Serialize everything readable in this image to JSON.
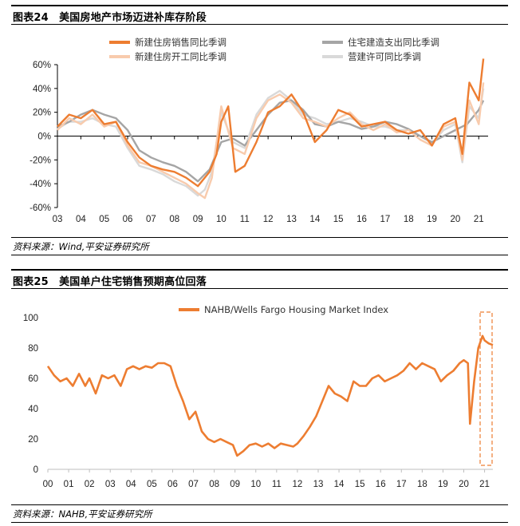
{
  "fig1": {
    "title": "图表24　美国房地产市场迈进补库存阶段",
    "source": "资料来源：Wind,平安证券研究所",
    "chart_data": {
      "type": "line",
      "xlabel": "",
      "ylabel": "",
      "x_ticks": [
        "03",
        "04",
        "05",
        "06",
        "07",
        "08",
        "09",
        "10",
        "11",
        "12",
        "13",
        "14",
        "15",
        "16",
        "17",
        "18",
        "19",
        "20",
        "21"
      ],
      "y_ticks": [
        "60%",
        "40%",
        "20%",
        "0%",
        "-20%",
        "-40%",
        "-60%"
      ],
      "ylim": [
        -60,
        60
      ],
      "grid": false,
      "legend_position": "top",
      "series": [
        {
          "name": "新建住房销售同比季调",
          "color": "#ED7D31",
          "x": [
            2003.0,
            2003.5,
            2004.0,
            2004.5,
            2005.0,
            2005.5,
            2006.0,
            2006.5,
            2007.0,
            2007.5,
            2008.0,
            2008.5,
            2009.0,
            2009.5,
            2009.8,
            2010.0,
            2010.3,
            2010.6,
            2011.0,
            2011.5,
            2012.0,
            2012.5,
            2013.0,
            2013.5,
            2014.0,
            2014.5,
            2015.0,
            2015.5,
            2016.0,
            2016.5,
            2017.0,
            2017.5,
            2018.0,
            2018.5,
            2019.0,
            2019.5,
            2020.0,
            2020.3,
            2020.6,
            2021.0,
            2021.2
          ],
          "values": [
            8,
            18,
            15,
            22,
            10,
            12,
            -5,
            -18,
            -25,
            -28,
            -30,
            -35,
            -42,
            -30,
            -15,
            12,
            25,
            -30,
            -25,
            -5,
            20,
            25,
            35,
            20,
            -5,
            5,
            22,
            18,
            8,
            10,
            12,
            5,
            2,
            5,
            -8,
            10,
            15,
            -15,
            45,
            30,
            65
          ]
        },
        {
          "name": "住宅建造支出同比季调",
          "color": "#A5A5A5",
          "x": [
            2003.0,
            2003.5,
            2004.0,
            2004.5,
            2005.0,
            2005.5,
            2006.0,
            2006.5,
            2007.0,
            2007.5,
            2008.0,
            2008.5,
            2009.0,
            2009.5,
            2010.0,
            2010.5,
            2011.0,
            2011.5,
            2012.0,
            2012.5,
            2013.0,
            2013.5,
            2014.0,
            2014.5,
            2015.0,
            2015.5,
            2016.0,
            2016.5,
            2017.0,
            2017.5,
            2018.0,
            2018.5,
            2019.0,
            2019.5,
            2020.0,
            2020.5,
            2021.0,
            2021.2
          ],
          "values": [
            8,
            12,
            18,
            22,
            18,
            15,
            5,
            -12,
            -18,
            -22,
            -25,
            -30,
            -38,
            -28,
            -5,
            -2,
            -8,
            5,
            18,
            28,
            30,
            22,
            10,
            8,
            12,
            10,
            6,
            8,
            12,
            10,
            6,
            0,
            -5,
            0,
            5,
            10,
            22,
            30
          ]
        },
        {
          "name": "新建住房开工同比季调",
          "color": "#F8CBAD",
          "x": [
            2003.0,
            2003.5,
            2004.0,
            2004.5,
            2005.0,
            2005.5,
            2006.0,
            2006.5,
            2007.0,
            2007.5,
            2008.0,
            2008.5,
            2009.0,
            2009.3,
            2009.6,
            2010.0,
            2010.5,
            2011.0,
            2011.5,
            2012.0,
            2012.5,
            2013.0,
            2013.5,
            2014.0,
            2014.5,
            2015.0,
            2015.5,
            2016.0,
            2016.5,
            2017.0,
            2017.5,
            2018.0,
            2018.5,
            2019.0,
            2019.5,
            2020.0,
            2020.3,
            2020.6,
            2021.0,
            2021.2
          ],
          "values": [
            5,
            15,
            10,
            18,
            8,
            12,
            -8,
            -22,
            -25,
            -30,
            -35,
            -40,
            -48,
            -52,
            -35,
            25,
            -10,
            -15,
            15,
            30,
            35,
            28,
            15,
            12,
            8,
            15,
            20,
            10,
            5,
            10,
            3,
            5,
            -3,
            -8,
            8,
            12,
            -20,
            30,
            10,
            45
          ]
        },
        {
          "name": "营建许可同比季调",
          "color": "#D9D9D9",
          "x": [
            2003.0,
            2003.5,
            2004.0,
            2004.5,
            2005.0,
            2005.5,
            2006.0,
            2006.5,
            2007.0,
            2007.5,
            2008.0,
            2008.5,
            2009.0,
            2009.3,
            2009.6,
            2010.0,
            2010.5,
            2011.0,
            2011.5,
            2012.0,
            2012.5,
            2013.0,
            2013.5,
            2014.0,
            2014.5,
            2015.0,
            2015.5,
            2016.0,
            2016.5,
            2017.0,
            2017.5,
            2018.0,
            2018.5,
            2019.0,
            2019.5,
            2020.0,
            2020.3,
            2020.6,
            2021.0,
            2021.2
          ],
          "values": [
            6,
            12,
            12,
            15,
            10,
            8,
            -10,
            -25,
            -28,
            -32,
            -38,
            -42,
            -50,
            -45,
            -30,
            20,
            -5,
            -10,
            18,
            32,
            38,
            30,
            18,
            15,
            10,
            12,
            15,
            12,
            8,
            8,
            5,
            5,
            0,
            -6,
            5,
            10,
            -22,
            25,
            15,
            40
          ]
        }
      ]
    }
  },
  "fig2": {
    "title": "图表25　美国单户住宅销售预期高位回落",
    "source": "资料来源：NAHB,平安证券研究所",
    "chart_data": {
      "type": "line",
      "xlabel": "",
      "ylabel": "",
      "x_ticks": [
        "00",
        "01",
        "02",
        "03",
        "04",
        "05",
        "06",
        "07",
        "08",
        "09",
        "10",
        "11",
        "12",
        "13",
        "14",
        "15",
        "16",
        "17",
        "18",
        "19",
        "20",
        "21"
      ],
      "y_ticks": [
        "100",
        "80",
        "60",
        "40",
        "20",
        "0"
      ],
      "ylim": [
        0,
        100
      ],
      "grid": false,
      "legend_position": "top",
      "series": [
        {
          "name": "NAHB/Wells Fargo Housing Market Index",
          "color": "#ED7D31",
          "x": [
            2000.0,
            2000.3,
            2000.6,
            2000.9,
            2001.2,
            2001.5,
            2001.8,
            2002.0,
            2002.3,
            2002.6,
            2002.9,
            2003.2,
            2003.5,
            2003.8,
            2004.1,
            2004.4,
            2004.7,
            2005.0,
            2005.3,
            2005.6,
            2005.9,
            2006.2,
            2006.5,
            2006.8,
            2007.1,
            2007.4,
            2007.7,
            2008.0,
            2008.3,
            2008.6,
            2008.9,
            2009.1,
            2009.4,
            2009.7,
            2010.0,
            2010.3,
            2010.6,
            2010.9,
            2011.2,
            2011.5,
            2011.8,
            2012.0,
            2012.3,
            2012.6,
            2012.9,
            2013.2,
            2013.5,
            2013.8,
            2014.1,
            2014.4,
            2014.7,
            2015.0,
            2015.3,
            2015.6,
            2015.9,
            2016.2,
            2016.5,
            2016.8,
            2017.1,
            2017.4,
            2017.7,
            2018.0,
            2018.3,
            2018.6,
            2018.9,
            2019.2,
            2019.5,
            2019.8,
            2020.0,
            2020.2,
            2020.3,
            2020.5,
            2020.7,
            2020.9,
            2021.0,
            2021.2,
            2021.4
          ],
          "values": [
            68,
            62,
            58,
            60,
            55,
            63,
            55,
            60,
            50,
            62,
            60,
            62,
            55,
            66,
            68,
            66,
            68,
            67,
            70,
            70,
            68,
            55,
            45,
            33,
            38,
            25,
            20,
            18,
            20,
            18,
            16,
            9,
            12,
            16,
            17,
            15,
            17,
            14,
            17,
            16,
            15,
            17,
            22,
            28,
            35,
            45,
            55,
            50,
            48,
            45,
            58,
            55,
            55,
            60,
            62,
            58,
            60,
            62,
            65,
            70,
            66,
            70,
            68,
            66,
            58,
            62,
            65,
            70,
            72,
            70,
            30,
            58,
            80,
            88,
            85,
            83,
            82
          ]
        }
      ]
    }
  }
}
